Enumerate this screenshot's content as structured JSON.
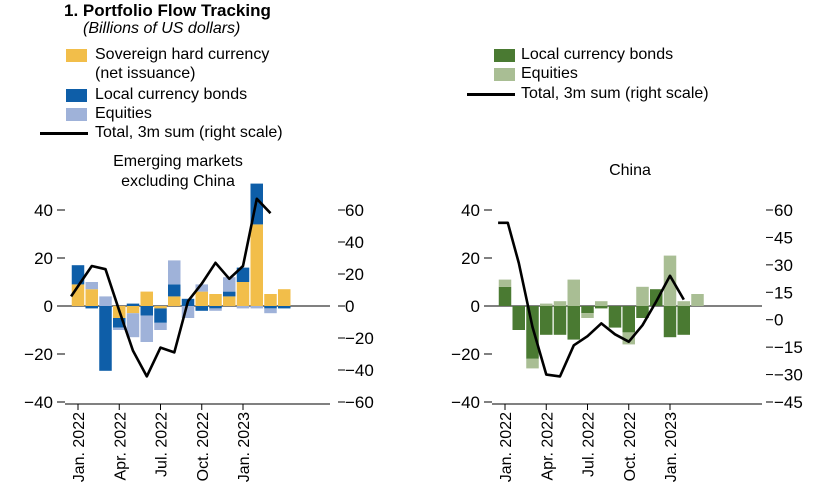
{
  "title": "1. Portfolio Flow Tracking",
  "subtitle": "(Billions of US dollars)",
  "colors": {
    "sovereign": "#F2BE4A",
    "local_em": "#0E5EA8",
    "equities_em": "#9FB2D9",
    "local_cn": "#4A7A32",
    "equities_cn": "#A9BE94",
    "total": "#000000"
  },
  "legend_left": [
    {
      "label": "Sovereign hard currency",
      "label2": "(net issuance)",
      "kind": "swatch",
      "color": "#F2BE4A"
    },
    {
      "label": "Local currency bonds",
      "kind": "swatch",
      "color": "#0E5EA8"
    },
    {
      "label": "Equities",
      "kind": "swatch",
      "color": "#9FB2D9"
    },
    {
      "label": "Total, 3m sum (right scale)",
      "kind": "line",
      "color": "#000000"
    }
  ],
  "legend_right": [
    {
      "label": "Local currency bonds",
      "kind": "swatch",
      "color": "#4A7A32"
    },
    {
      "label": "Equities",
      "kind": "swatch",
      "color": "#A9BE94"
    },
    {
      "label": "Total, 3m sum (right scale)",
      "kind": "line",
      "color": "#000000"
    }
  ],
  "chart_data": [
    {
      "type": "bar",
      "panel_title": [
        "Emerging markets",
        "excluding China"
      ],
      "x_tick_labels": [
        "Jan. 2022",
        "Apr. 2022",
        "Jul. 2022",
        "Oct. 2022",
        "Jan. 2023"
      ],
      "x_tick_months": [
        0,
        3,
        6,
        9,
        12
      ],
      "left_axis": {
        "ylim": [
          -40,
          40
        ],
        "ticks": [
          "40",
          "20",
          "0",
          "−20",
          "−40"
        ],
        "tick_values": [
          40,
          20,
          0,
          -20,
          -40
        ]
      },
      "right_axis": {
        "ylim": [
          -60,
          60
        ],
        "ticks": [
          "60",
          "40",
          "20",
          "0",
          "−20",
          "−40",
          "−60"
        ],
        "tick_values": [
          60,
          40,
          20,
          0,
          -20,
          -40,
          -60
        ]
      },
      "series": [
        {
          "name": "Sovereign hard currency (net issuance)",
          "key": "sovereign",
          "values": [
            9,
            7,
            0,
            -5,
            -3,
            6,
            -1,
            4,
            0,
            6,
            5,
            4,
            10,
            34,
            5,
            7
          ]
        },
        {
          "name": "Local currency bonds",
          "key": "local_em",
          "values": [
            8,
            -1,
            -27,
            -4,
            1,
            -4,
            -6,
            5,
            3,
            -2,
            -1,
            2,
            6,
            17,
            -1,
            -1
          ]
        },
        {
          "name": "Equities",
          "key": "equities_em",
          "values": [
            0,
            3,
            4,
            -1,
            -10,
            -11,
            -3,
            10,
            -5,
            3,
            -1,
            6,
            -1,
            -1,
            -2,
            0
          ]
        },
        {
          "name": "Total, 3m sum (right scale)",
          "key": "total",
          "type": "line",
          "axis": "right",
          "x": [
            -0.5,
            1,
            2,
            3,
            4,
            5,
            6,
            7,
            8,
            9,
            10,
            11,
            12,
            13,
            14
          ],
          "values": [
            6,
            25,
            23,
            -3,
            -28,
            -44,
            -26,
            -29,
            3,
            14,
            27,
            17,
            25,
            67,
            58
          ]
        }
      ]
    },
    {
      "type": "bar",
      "panel_title": [
        "China"
      ],
      "x_tick_labels": [
        "Jan. 2022",
        "Apr. 2022",
        "Jul. 2022",
        "Oct. 2022",
        "Jan. 2023"
      ],
      "x_tick_months": [
        0,
        3,
        6,
        9,
        12
      ],
      "left_axis": {
        "ylim": [
          -40,
          40
        ],
        "ticks": [
          "40",
          "20",
          "0",
          "−20",
          "−40"
        ],
        "tick_values": [
          40,
          20,
          0,
          -20,
          -40
        ]
      },
      "right_axis": {
        "ylim": [
          -45,
          60
        ],
        "ticks": [
          "60",
          "45",
          "30",
          "15",
          "0",
          "−15",
          "−30",
          "−45"
        ],
        "tick_values": [
          60,
          45,
          30,
          15,
          0,
          -15,
          -30,
          -45
        ]
      },
      "series": [
        {
          "name": "Local currency bonds",
          "key": "local_cn",
          "values": [
            8,
            -10,
            -22,
            -12,
            -12,
            -14,
            -3,
            -1,
            -9,
            -11,
            -5,
            7,
            -13,
            -12,
            0
          ]
        },
        {
          "name": "Equities",
          "key": "equities_cn",
          "values": [
            3,
            0,
            -4,
            1,
            2,
            11,
            -2,
            2,
            0,
            -5,
            8,
            0,
            21,
            2,
            5
          ]
        },
        {
          "name": "Total, 3m sum (right scale)",
          "key": "total",
          "type": "line",
          "axis": "right",
          "x": [
            -0.5,
            0.2,
            1,
            2,
            3,
            4,
            5,
            6,
            7,
            8,
            9,
            10,
            11,
            12,
            13
          ],
          "values": [
            53,
            53,
            31,
            -4,
            -30,
            -31,
            -14,
            -9,
            -2,
            -8,
            -12,
            -3,
            10,
            24,
            11
          ]
        }
      ]
    }
  ]
}
